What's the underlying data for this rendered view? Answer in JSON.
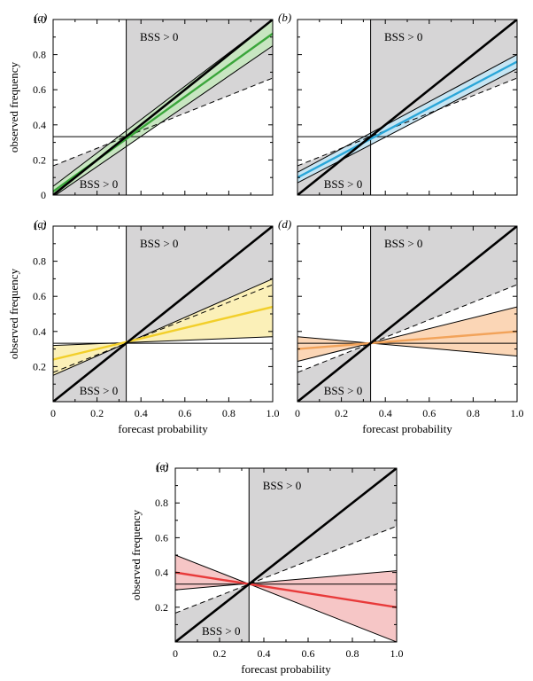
{
  "chart_data": [
    {
      "panel": "(a)",
      "type": "line",
      "xlabel": "",
      "ylabel": "observed frequency",
      "xlim": [
        0,
        1
      ],
      "ylim": [
        0,
        1
      ],
      "x_ticks": [],
      "y_ticks": [
        "0",
        "0.2",
        "0.4",
        "0.6",
        "0.8",
        "1.0"
      ],
      "bss_labels": [
        "BSS > 0",
        "BSS > 0"
      ],
      "climatology": 0.333,
      "accent": "#3aa63a",
      "band_color": "#c8e6c1",
      "fit": {
        "x": [
          0,
          1
        ],
        "y": [
          0.02,
          0.92
        ]
      },
      "band_upper": {
        "x": [
          0,
          1
        ],
        "y": [
          0.05,
          1.0
        ]
      },
      "band_lower": {
        "x": [
          0,
          1
        ],
        "y": [
          -0.01,
          0.85
        ]
      }
    },
    {
      "panel": "(b)",
      "type": "line",
      "xlabel": "",
      "ylabel": "",
      "xlim": [
        0,
        1
      ],
      "ylim": [
        0,
        1
      ],
      "x_ticks": [],
      "y_ticks": [],
      "bss_labels": [
        "BSS > 0",
        "BSS > 0"
      ],
      "climatology": 0.333,
      "accent": "#2aa6d8",
      "band_color": "#c6e5f3",
      "fit": {
        "x": [
          0,
          1
        ],
        "y": [
          0.1,
          0.76
        ]
      },
      "band_upper": {
        "x": [
          0,
          1
        ],
        "y": [
          0.13,
          0.8
        ]
      },
      "band_lower": {
        "x": [
          0,
          1
        ],
        "y": [
          0.07,
          0.72
        ]
      }
    },
    {
      "panel": "(c)",
      "type": "line",
      "xlabel": "forecast probability",
      "ylabel": "observed frequency",
      "xlim": [
        0,
        1
      ],
      "ylim": [
        0,
        1
      ],
      "x_ticks": [
        "0",
        "0.2",
        "0.4",
        "0.6",
        "0.8",
        "1.0"
      ],
      "y_ticks": [
        "0.2",
        "0.4",
        "0.6",
        "0.8",
        "1.0"
      ],
      "bss_labels": [
        "BSS > 0",
        "BSS > 0"
      ],
      "climatology": 0.333,
      "accent": "#f2cf2a",
      "band_color": "#fbf0b8",
      "fit": {
        "x": [
          0,
          1
        ],
        "y": [
          0.24,
          0.54
        ]
      },
      "band_upper": {
        "x": [
          0,
          1
        ],
        "y": [
          0.15,
          0.7
        ]
      },
      "band_lower": {
        "x": [
          0,
          1
        ],
        "y": [
          0.32,
          0.37
        ]
      }
    },
    {
      "panel": "(d)",
      "type": "line",
      "xlabel": "forecast probability",
      "ylabel": "",
      "xlim": [
        0,
        1
      ],
      "ylim": [
        0,
        1
      ],
      "x_ticks": [
        "0",
        "0.2",
        "0.4",
        "0.6",
        "0.8",
        "1.0"
      ],
      "y_ticks": [],
      "bss_labels": [
        "BSS > 0",
        "BSS > 0"
      ],
      "climatology": 0.333,
      "accent": "#f2a35a",
      "band_color": "#fbd6b6",
      "fit": {
        "x": [
          0,
          1
        ],
        "y": [
          0.3,
          0.4
        ]
      },
      "band_upper": {
        "x": [
          0,
          1
        ],
        "y": [
          0.23,
          0.54
        ]
      },
      "band_lower": {
        "x": [
          0,
          1
        ],
        "y": [
          0.37,
          0.26
        ]
      }
    },
    {
      "panel": "(e)",
      "type": "line",
      "xlabel": "forecast probability",
      "ylabel": "observed frequency",
      "xlim": [
        0,
        1
      ],
      "ylim": [
        0,
        1
      ],
      "x_ticks": [
        "0",
        "0.2",
        "0.4",
        "0.6",
        "0.8",
        "1.0"
      ],
      "y_ticks": [
        "0.2",
        "0.4",
        "0.6",
        "0.8",
        "1.0"
      ],
      "bss_labels": [
        "BSS > 0",
        "BSS > 0"
      ],
      "climatology": 0.333,
      "accent": "#e83a3a",
      "band_color": "#f6c6c6",
      "fit": {
        "x": [
          0,
          1
        ],
        "y": [
          0.4,
          0.2
        ]
      },
      "band_upper": {
        "x": [
          0,
          1
        ],
        "y": [
          0.5,
          0.0
        ]
      },
      "band_lower": {
        "x": [
          0,
          1
        ],
        "y": [
          0.3,
          0.41
        ]
      }
    }
  ]
}
